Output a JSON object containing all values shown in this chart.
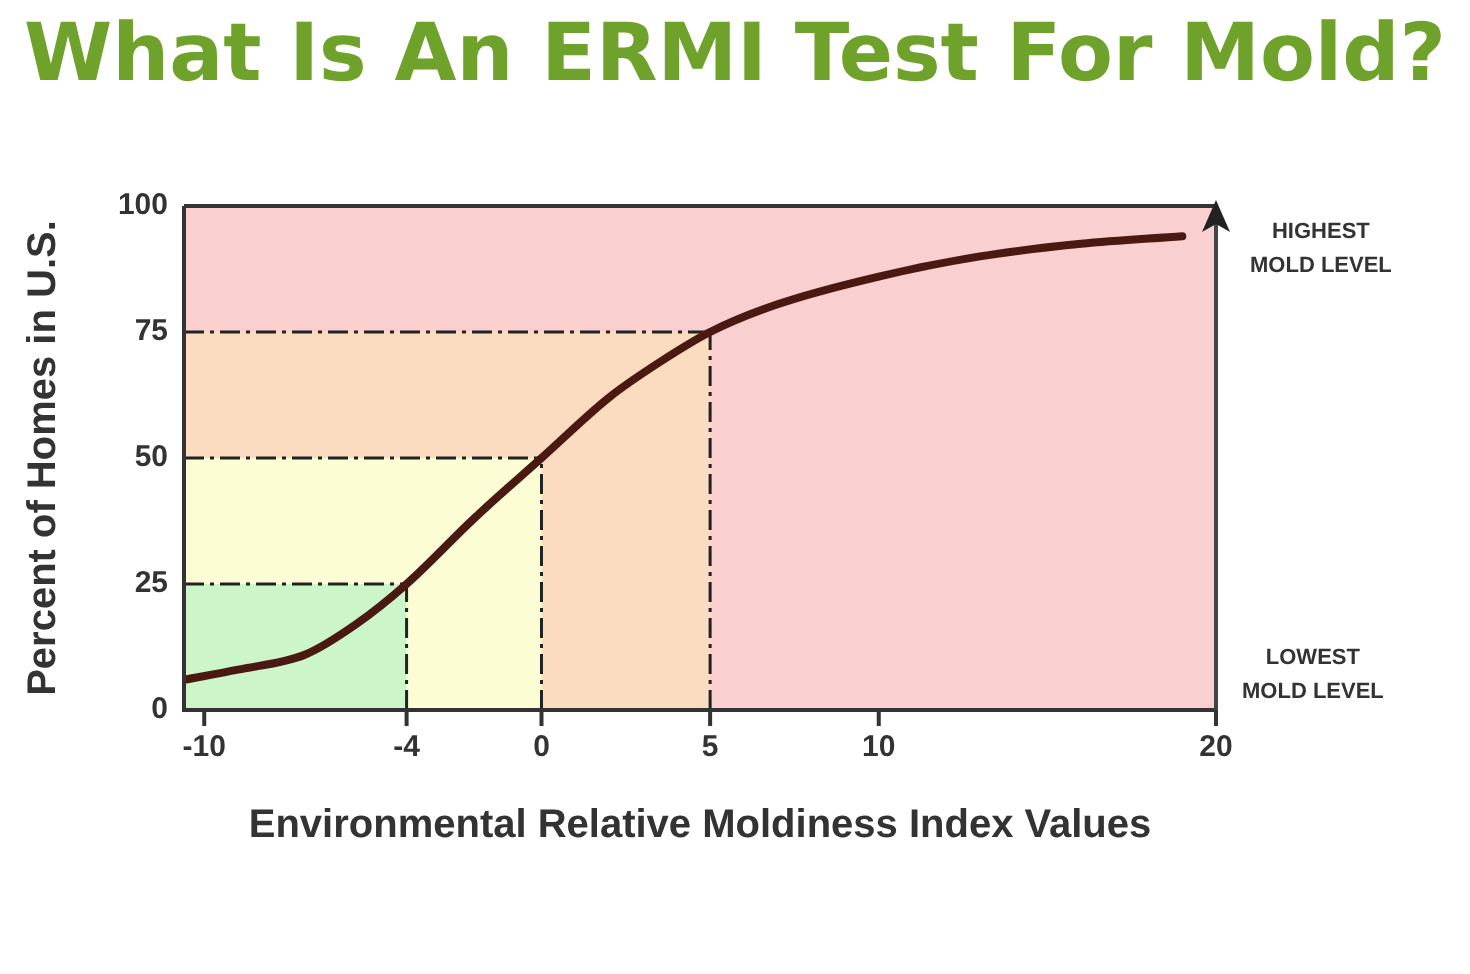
{
  "chart_data": {
    "type": "line",
    "title": "What Is An ERMI Test For Mold?",
    "xlabel": "Environmental Relative Moldiness Index Values",
    "ylabel": "Percent of Homes in U.S.",
    "x": [
      -10.6,
      -9,
      -7,
      -5.5,
      -4,
      -2,
      0,
      2,
      3.5,
      5,
      7,
      10,
      13,
      16,
      19
    ],
    "series": [
      {
        "color": "#4a1a12",
        "values": [
          6,
          8,
          11,
          17,
          25,
          38,
          50,
          62,
          69,
          75,
          80.5,
          86,
          90,
          92.5,
          94
        ]
      }
    ],
    "xlim": [
      -10.6,
      20
    ],
    "xticks": [
      -10,
      -4,
      0,
      5,
      10,
      20
    ],
    "ylim": [
      0,
      100
    ],
    "yticks": [
      0,
      25,
      50,
      75,
      100
    ],
    "bands": [
      {
        "axis": "y",
        "from": 0,
        "to": 100,
        "color": "#f9cfcf"
      },
      {
        "axis": "y",
        "from": 0,
        "to": 75,
        "color": "#fbdcc0"
      },
      {
        "axis": "y",
        "from": 0,
        "to": 50,
        "color": "#fdfdd5"
      },
      {
        "axis": "y",
        "from": 0,
        "to": 25,
        "color": "#ccf5c9"
      }
    ],
    "ref_lines": [
      {
        "axis": "y",
        "value": 25
      },
      {
        "axis": "y",
        "value": 50
      },
      {
        "axis": "y",
        "value": 75
      },
      {
        "axis": "x",
        "value": -4
      },
      {
        "axis": "x",
        "value": 0
      },
      {
        "axis": "x",
        "value": 5
      }
    ],
    "annotations": [
      "HIGHEST\nMOLD LEVEL",
      "LOWEST\nMOLD LEVEL"
    ],
    "legend": false,
    "marker": "none",
    "line_style": "solid"
  }
}
